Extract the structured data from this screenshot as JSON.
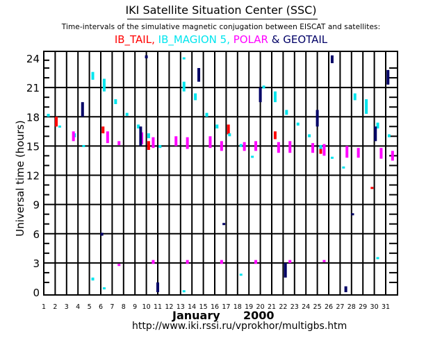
{
  "header": {
    "title": "IKI Satellite Situation Center (SSC)",
    "subtitle": "Time-intervals of the simulative magnetic conjugation between EISCAT and satellites:",
    "legend": [
      {
        "label": "IB_TAIL",
        "color": "#ff0000",
        "sep": ", "
      },
      {
        "label": "IB_MAGION 5",
        "color": "#00e5ee",
        "sep": ", "
      },
      {
        "label": "POLAR",
        "color": "#ff00ff",
        "sep": " & "
      },
      {
        "label": "GEOTAIL",
        "color": "#000066",
        "sep": ""
      }
    ]
  },
  "footer": {
    "month": "January",
    "year": "2000",
    "url": "http://www.iki.rssi.ru/vprokhor/multigbs.htm"
  },
  "chart_data": {
    "type": "scatter",
    "title": "IKI Satellite Situation Center (SSC)",
    "subtitle": "Time-intervals of the simulative magnetic conjugation between EISCAT and satellites:",
    "xlabel": "January 2000",
    "ylabel": "Universal time (hours)",
    "x_ticks": [
      1,
      2,
      3,
      4,
      5,
      6,
      7,
      8,
      9,
      10,
      11,
      12,
      13,
      14,
      15,
      16,
      17,
      18,
      19,
      20,
      21,
      22,
      23,
      24,
      25,
      26,
      27,
      28,
      29,
      30,
      31
    ],
    "y_ticks": [
      0,
      3,
      6,
      9,
      12,
      15,
      18,
      21,
      24
    ],
    "xlim": [
      1,
      32
    ],
    "ylim": [
      0,
      24
    ],
    "grid": true,
    "legend_position": "top",
    "series": [
      {
        "name": "IB_TAIL",
        "color": "#ff0000",
        "intervals": [
          {
            "day": 2.1,
            "start": 17.0,
            "end": 18.0
          },
          {
            "day": 6.2,
            "start": 16.3,
            "end": 17.0
          },
          {
            "day": 10.2,
            "start": 14.6,
            "end": 15.5
          },
          {
            "day": 17.2,
            "start": 16.2,
            "end": 17.2
          },
          {
            "day": 21.3,
            "start": 15.7,
            "end": 16.5
          },
          {
            "day": 25.3,
            "start": 14.2,
            "end": 15.1
          },
          {
            "day": 29.8,
            "start": 10.7,
            "end": 10.8
          }
        ]
      },
      {
        "name": "IB_MAGION 5",
        "color": "#00e5ee",
        "intervals": [
          {
            "day": 1.4,
            "start": 18.0,
            "end": 18.3
          },
          {
            "day": 2.4,
            "start": 17.0,
            "end": 17.1
          },
          {
            "day": 3.7,
            "start": 15.9,
            "end": 16.3
          },
          {
            "day": 4.5,
            "start": 15.0,
            "end": 15.1
          },
          {
            "day": 5.3,
            "start": 21.8,
            "end": 22.6
          },
          {
            "day": 5.3,
            "start": 1.2,
            "end": 1.5
          },
          {
            "day": 6.3,
            "start": 20.6,
            "end": 21.9
          },
          {
            "day": 6.3,
            "start": 0.3,
            "end": 0.5
          },
          {
            "day": 7.3,
            "start": 19.3,
            "end": 19.8
          },
          {
            "day": 8.3,
            "start": 18.1,
            "end": 18.4
          },
          {
            "day": 9.3,
            "start": 16.8,
            "end": 17.2
          },
          {
            "day": 10.2,
            "start": 15.8,
            "end": 16.3
          },
          {
            "day": 11.2,
            "start": 14.8,
            "end": 15.1
          },
          {
            "day": 13.3,
            "start": 23.9,
            "end": 24.1
          },
          {
            "day": 13.3,
            "start": 20.6,
            "end": 21.6
          },
          {
            "day": 13.3,
            "start": 0.1,
            "end": 0.2
          },
          {
            "day": 14.3,
            "start": 19.7,
            "end": 20.4
          },
          {
            "day": 15.3,
            "start": 18.0,
            "end": 18.4
          },
          {
            "day": 16.2,
            "start": 16.8,
            "end": 17.2
          },
          {
            "day": 17.3,
            "start": 16.0,
            "end": 16.3
          },
          {
            "day": 18.3,
            "start": 14.9,
            "end": 15.2
          },
          {
            "day": 18.3,
            "start": 1.7,
            "end": 1.9
          },
          {
            "day": 19.3,
            "start": 13.8,
            "end": 14.0
          },
          {
            "day": 20.3,
            "start": 20.9,
            "end": 21.2
          },
          {
            "day": 21.3,
            "start": 19.5,
            "end": 20.6
          },
          {
            "day": 22.3,
            "start": 18.2,
            "end": 18.7
          },
          {
            "day": 23.3,
            "start": 17.1,
            "end": 17.4
          },
          {
            "day": 24.3,
            "start": 15.9,
            "end": 16.2
          },
          {
            "day": 25.3,
            "start": 14.7,
            "end": 15.1
          },
          {
            "day": 26.3,
            "start": 13.7,
            "end": 13.9
          },
          {
            "day": 27.3,
            "start": 12.7,
            "end": 12.9
          },
          {
            "day": 28.3,
            "start": 19.7,
            "end": 20.4
          },
          {
            "day": 29.3,
            "start": 18.3,
            "end": 19.8
          },
          {
            "day": 30.3,
            "start": 16.8,
            "end": 17.4
          },
          {
            "day": 30.3,
            "start": 3.5,
            "end": 3.6
          },
          {
            "day": 31.3,
            "start": 15.9,
            "end": 16.2
          }
        ]
      },
      {
        "name": "POLAR",
        "color": "#ff00ff",
        "intervals": [
          {
            "day": 3.6,
            "start": 15.5,
            "end": 16.5
          },
          {
            "day": 6.6,
            "start": 15.3,
            "end": 16.5
          },
          {
            "day": 7.6,
            "start": 15.1,
            "end": 15.5
          },
          {
            "day": 7.6,
            "start": 2.8,
            "end": 2.9
          },
          {
            "day": 9.6,
            "start": 15.2,
            "end": 16.4
          },
          {
            "day": 10.6,
            "start": 14.8,
            "end": 15.9
          },
          {
            "day": 10.6,
            "start": 2.9,
            "end": 3.3
          },
          {
            "day": 12.6,
            "start": 15.0,
            "end": 16.0
          },
          {
            "day": 13.6,
            "start": 14.7,
            "end": 15.9
          },
          {
            "day": 13.6,
            "start": 2.9,
            "end": 3.3
          },
          {
            "day": 15.6,
            "start": 14.8,
            "end": 16.0
          },
          {
            "day": 16.6,
            "start": 14.5,
            "end": 15.5
          },
          {
            "day": 16.6,
            "start": 2.9,
            "end": 3.3
          },
          {
            "day": 18.6,
            "start": 14.5,
            "end": 15.4
          },
          {
            "day": 19.6,
            "start": 14.5,
            "end": 15.5
          },
          {
            "day": 19.6,
            "start": 2.9,
            "end": 3.3
          },
          {
            "day": 21.6,
            "start": 14.3,
            "end": 15.4
          },
          {
            "day": 22.6,
            "start": 14.3,
            "end": 15.5
          },
          {
            "day": 22.6,
            "start": 3.0,
            "end": 3.3
          },
          {
            "day": 24.6,
            "start": 14.3,
            "end": 15.3
          },
          {
            "day": 25.6,
            "start": 14.0,
            "end": 15.2
          },
          {
            "day": 25.6,
            "start": 3.1,
            "end": 3.3
          },
          {
            "day": 27.6,
            "start": 13.8,
            "end": 15.0
          },
          {
            "day": 28.6,
            "start": 13.8,
            "end": 14.8
          },
          {
            "day": 30.6,
            "start": 13.7,
            "end": 14.8
          },
          {
            "day": 31.6,
            "start": 13.5,
            "end": 14.5
          }
        ]
      },
      {
        "name": "GEOTAIL",
        "color": "#000066",
        "intervals": [
          {
            "day": 4.4,
            "start": 18.0,
            "end": 19.5
          },
          {
            "day": 6.1,
            "start": 5.8,
            "end": 6.1
          },
          {
            "day": 9.5,
            "start": 15.0,
            "end": 17.0
          },
          {
            "day": 10.0,
            "start": 24.0,
            "end": 24.3
          },
          {
            "day": 11.0,
            "start": 0.0,
            "end": 1.0
          },
          {
            "day": 14.6,
            "start": 21.6,
            "end": 23.0
          },
          {
            "day": 16.8,
            "start": 7.0,
            "end": 7.1
          },
          {
            "day": 20.0,
            "start": 19.5,
            "end": 21.0
          },
          {
            "day": 22.2,
            "start": 1.5,
            "end": 3.0
          },
          {
            "day": 25.0,
            "start": 17.0,
            "end": 18.7
          },
          {
            "day": 26.3,
            "start": 23.5,
            "end": 24.3
          },
          {
            "day": 27.5,
            "start": 0.0,
            "end": 0.6
          },
          {
            "day": 28.1,
            "start": 7.9,
            "end": 8.1
          },
          {
            "day": 30.1,
            "start": 15.5,
            "end": 17.0
          },
          {
            "day": 31.2,
            "start": 21.3,
            "end": 22.8
          }
        ]
      }
    ]
  }
}
